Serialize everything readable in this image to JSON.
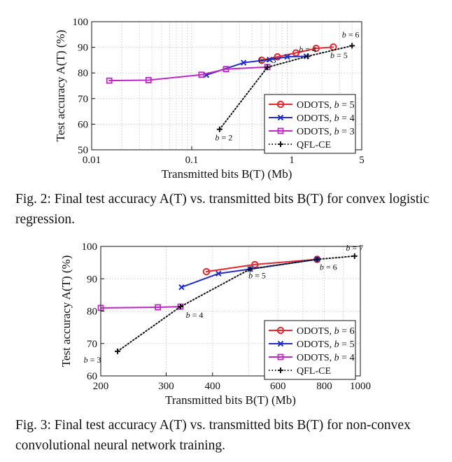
{
  "charts": [
    {
      "caption": "Fig. 2: Final test accuracy A(T) vs. transmitted bits B(T) for convex logistic regression.",
      "chart_data": {
        "type": "line",
        "xscale": "log",
        "xlim": [
          0.01,
          5
        ],
        "ylim": [
          50,
          100
        ],
        "xticks": [
          0.01,
          0.1,
          1,
          5
        ],
        "xtick_labels": [
          "0.01",
          "0.1",
          "1",
          "5"
        ],
        "yticks": [
          50,
          60,
          70,
          80,
          90,
          100
        ],
        "xlabel": "Transmitted bits B(T) (Mb)",
        "ylabel": "Test accuracy A(T) (%)",
        "grid": true,
        "legend_position": "bottom-right",
        "series": [
          {
            "name": "ODOTS, b = 5",
            "color": "#e8262b",
            "marker": "circle",
            "x": [
              0.5,
              0.72,
              1.1,
              1.75,
              2.6
            ],
            "y": [
              85,
              86.3,
              87.8,
              89.6,
              90.1
            ]
          },
          {
            "name": "ODOTS, b = 4",
            "color": "#1f2dcc",
            "marker": "x",
            "x": [
              0.14,
              0.33,
              0.6,
              0.9,
              1.4
            ],
            "y": [
              79.2,
              84,
              85.2,
              86.3,
              86.5
            ]
          },
          {
            "name": "ODOTS, b = 3",
            "color": "#c026c8",
            "marker": "square",
            "x": [
              0.015,
              0.037,
              0.125,
              0.22,
              0.57
            ],
            "y": [
              77,
              77.2,
              79.3,
              81.5,
              82.3
            ]
          },
          {
            "name": "QFL-CE",
            "color": "#111111",
            "marker": "plus",
            "dotted": true,
            "x": [
              0.19,
              0.57,
              1.44,
              4.0
            ],
            "y": [
              58,
              82.2,
              86.5,
              90.6
            ]
          }
        ],
        "annotations": [
          {
            "text": "b = 2",
            "x": 0.19,
            "y": 58
          },
          {
            "text": "b = 3",
            "x": 0.57,
            "y": 82.2
          },
          {
            "text": "b = 4",
            "x": 1.44,
            "y": 86.5
          },
          {
            "text": "b = 5",
            "x": 2.6,
            "y": 90.1
          },
          {
            "text": "b = 6",
            "x": 4.0,
            "y": 90.6
          }
        ]
      }
    },
    {
      "caption": "Fig. 3: Final test accuracy A(T) vs. transmitted bits B(T) for non-convex convolutional neural network training.",
      "chart_data": {
        "type": "line",
        "xscale": "log",
        "xlim": [
          200,
          1000
        ],
        "ylim": [
          60,
          100
        ],
        "xticks": [
          200,
          300,
          400,
          600,
          800,
          1000
        ],
        "xtick_labels": [
          "200",
          "300",
          "400",
          "600",
          "800",
          "1000"
        ],
        "yticks": [
          60,
          70,
          80,
          90,
          100
        ],
        "xlabel": "Transmitted bits B(T) (Mb)",
        "ylabel": "Test accuracy A(T) (%)",
        "grid": true,
        "legend_position": "bottom-right",
        "series": [
          {
            "name": "ODOTS, b = 6",
            "color": "#e8262b",
            "marker": "circle",
            "x": [
              385,
              520,
              765
            ],
            "y": [
              92.2,
              94.4,
              96
            ]
          },
          {
            "name": "ODOTS, b = 5",
            "color": "#1f2dcc",
            "marker": "x",
            "x": [
              330,
              415,
              505,
              765
            ],
            "y": [
              87.4,
              91.6,
              93,
              96
            ]
          },
          {
            "name": "ODOTS, b = 4",
            "color": "#c026c8",
            "marker": "square",
            "x": [
              200,
              285,
              328
            ],
            "y": [
              81,
              81.2,
              81.4
            ]
          },
          {
            "name": "QFL-CE",
            "color": "#111111",
            "marker": "plus",
            "dotted": true,
            "x": [
              222,
              328,
              505,
              765,
              965
            ],
            "y": [
              67.6,
              81.4,
              93,
              96,
              97
            ]
          }
        ],
        "annotations": [
          {
            "text": "b = 3",
            "x": 222,
            "y": 67.6
          },
          {
            "text": "b = 4",
            "x": 328,
            "y": 81.4
          },
          {
            "text": "b = 5",
            "x": 505,
            "y": 93
          },
          {
            "text": "b = 6",
            "x": 765,
            "y": 96
          },
          {
            "text": "b = 7",
            "x": 965,
            "y": 97
          }
        ]
      }
    }
  ]
}
